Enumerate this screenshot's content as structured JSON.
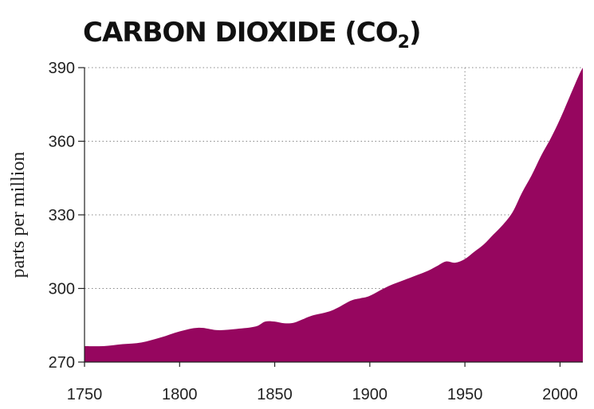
{
  "chart_data": {
    "type": "area",
    "title": "CARBON DIOXIDE (CO",
    "title_subscript": "2",
    "title_suffix": ")",
    "ylabel": "parts per million",
    "xlabel": "",
    "xlim": [
      1750,
      2012
    ],
    "ylim": [
      270,
      390
    ],
    "x_ticks": [
      1750,
      1800,
      1850,
      1900,
      1950,
      2000
    ],
    "y_ticks": [
      270,
      300,
      330,
      360,
      390
    ],
    "y_grid": true,
    "vertical_reference_x": 1950,
    "fill_color": "#96065f",
    "x": [
      1750,
      1760,
      1770,
      1780,
      1790,
      1800,
      1810,
      1820,
      1830,
      1840,
      1845,
      1850,
      1855,
      1860,
      1865,
      1870,
      1880,
      1890,
      1895,
      1900,
      1910,
      1920,
      1930,
      1935,
      1940,
      1945,
      1950,
      1955,
      1960,
      1965,
      1970,
      1975,
      1980,
      1985,
      1990,
      1995,
      2000,
      2005,
      2010,
      2012
    ],
    "values": [
      276.5,
      276.5,
      277.3,
      278,
      280,
      282.5,
      284,
      283,
      283.5,
      284.5,
      286.5,
      286.5,
      285.8,
      286,
      287.5,
      289,
      291,
      295,
      296,
      297,
      301,
      304,
      307,
      309,
      311,
      310.5,
      312,
      315,
      318,
      322,
      326,
      331,
      339,
      346,
      354,
      361,
      369,
      378,
      387,
      390
    ]
  }
}
